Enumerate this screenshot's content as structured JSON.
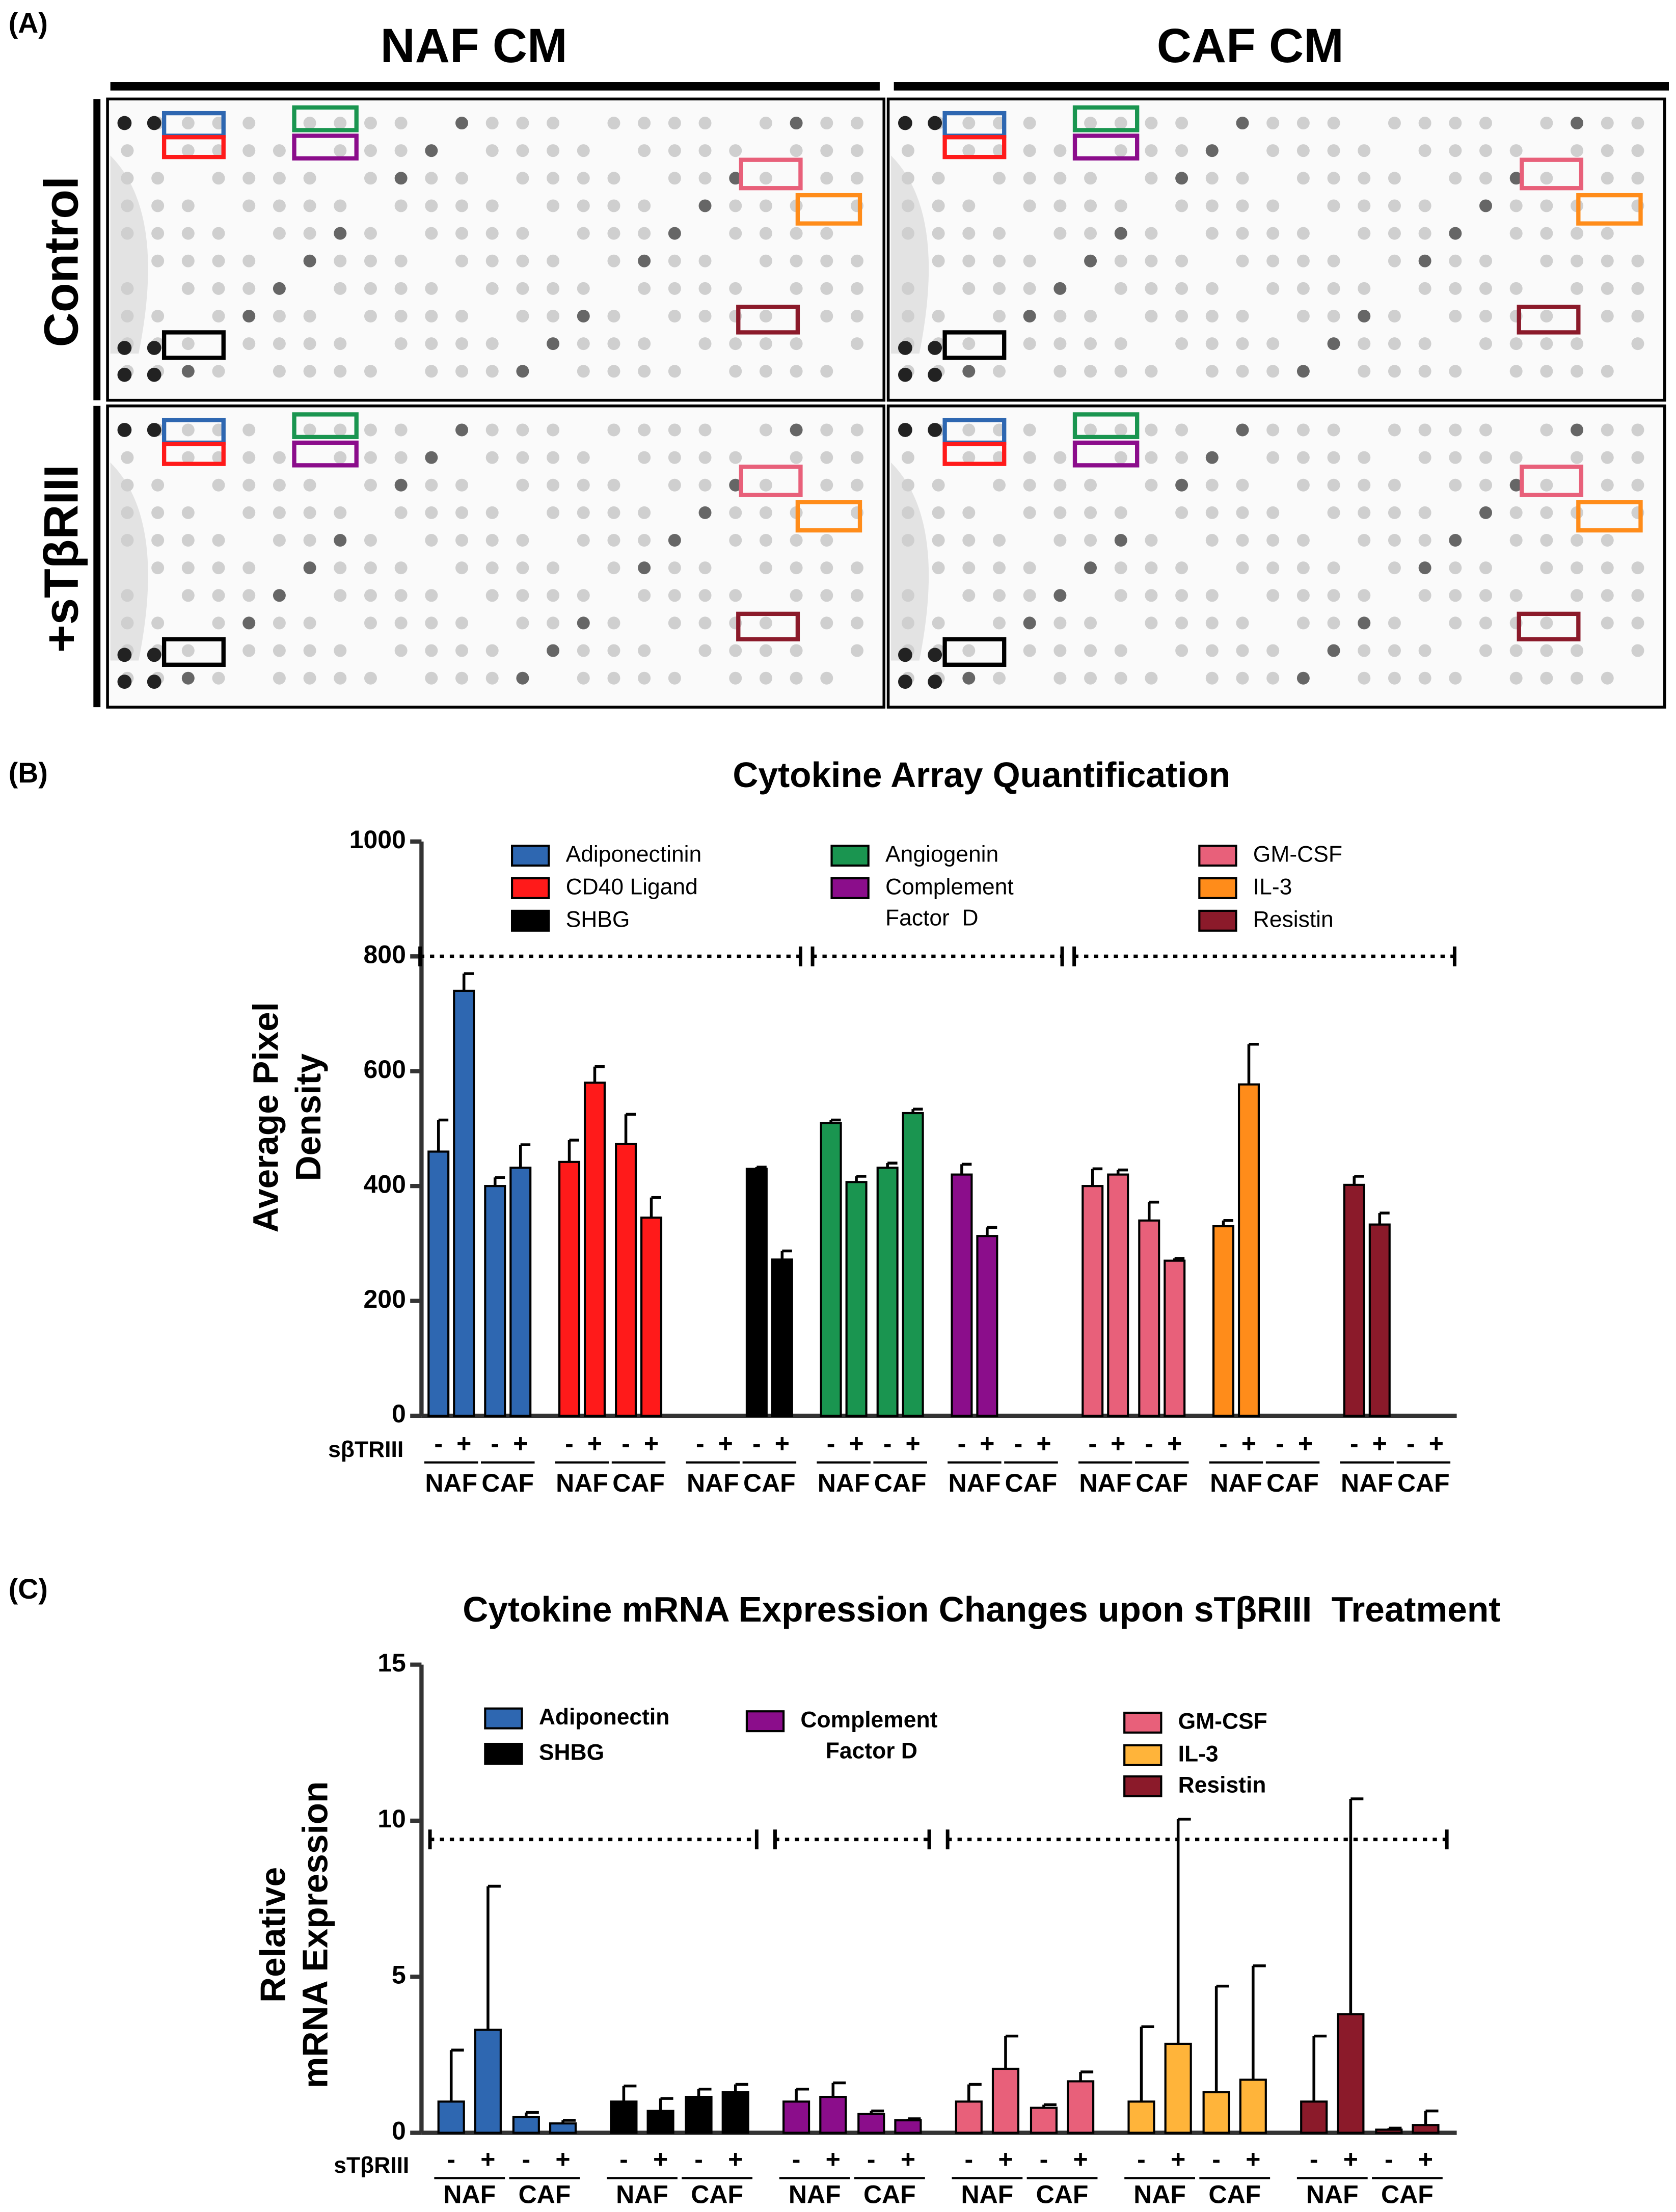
{
  "panel_labels": [
    "(A)",
    "(B)",
    "(C)"
  ],
  "panel_a": {
    "columns": [
      "NAF CM",
      "CAF CM"
    ],
    "rows": [
      "Control",
      "+sTβRIII"
    ]
  },
  "chart_data": [
    {
      "type": "bar",
      "title": "Cytokine Array Quantification",
      "y_label": "Average Pixel\nDensity",
      "ylim": [
        0,
        1000
      ],
      "yticks": [
        0,
        200,
        400,
        600,
        800,
        1000
      ],
      "treatment_label": "sβTRIII",
      "bar_labels": [
        "-",
        "+",
        "-",
        "+"
      ],
      "group_labels": [
        "NAF",
        "CAF"
      ],
      "bracket_level": 800,
      "brackets": [
        [
          0,
          2
        ],
        [
          3,
          4
        ],
        [
          5,
          7
        ]
      ],
      "series": [
        {
          "name": "Adiponectinin",
          "color": "#2e67b1",
          "values": [
            460,
            740,
            400,
            432
          ],
          "errors": [
            55,
            30,
            15,
            40
          ]
        },
        {
          "name": "CD40 Ligand",
          "color": "#ff1a1a",
          "values": [
            442,
            580,
            473,
            345
          ],
          "errors": [
            38,
            28,
            52,
            35
          ]
        },
        {
          "name": "SHBG",
          "color": "#000000",
          "values": [
            null,
            null,
            430,
            272
          ],
          "errors": [
            null,
            null,
            3,
            15
          ]
        },
        {
          "name": "Angiogenin",
          "color": "#1a9550",
          "values": [
            510,
            407,
            432,
            527
          ],
          "errors": [
            5,
            10,
            8,
            7
          ]
        },
        {
          "name": "Complement\nFactor  D",
          "color": "#8b0d8b",
          "values": [
            420,
            313,
            null,
            null
          ],
          "errors": [
            18,
            15,
            null,
            null
          ]
        },
        {
          "name": "GM-CSF",
          "color": "#e8607a",
          "values": [
            400,
            420,
            340,
            270
          ],
          "errors": [
            30,
            8,
            32,
            4
          ]
        },
        {
          "name": "IL-3",
          "color": "#ff8c1a",
          "values": [
            330,
            577,
            null,
            null
          ],
          "errors": [
            10,
            70,
            null,
            null
          ]
        },
        {
          "name": "Resistin",
          "color": "#8b1a2a",
          "values": [
            402,
            333,
            null,
            null
          ],
          "errors": [
            15,
            20,
            null,
            null
          ]
        }
      ]
    },
    {
      "type": "bar",
      "title": "Cytokine mRNA Expression Changes upon sTβRIII  Treatment",
      "y_label": "Relative\nmRNA Expression",
      "ylim": [
        0,
        15
      ],
      "yticks": [
        0,
        5,
        10,
        15
      ],
      "treatment_label": "sTβRIII",
      "bar_labels": [
        "-",
        "+",
        "-",
        "+"
      ],
      "group_labels": [
        "NAF",
        "CAF"
      ],
      "bracket_level": 9.4,
      "brackets": [
        [
          0,
          1
        ],
        [
          2,
          2
        ],
        [
          3,
          5
        ]
      ],
      "series": [
        {
          "name": "Adiponectin",
          "color": "#2e67b1",
          "values": [
            1,
            3.3,
            0.5,
            0.3
          ],
          "errors": [
            1.65,
            4.6,
            0.15,
            0.1
          ]
        },
        {
          "name": "SHBG",
          "color": "#000000",
          "values": [
            1,
            0.7,
            1.15,
            1.3
          ],
          "errors": [
            0.5,
            0.4,
            0.25,
            0.25
          ]
        },
        {
          "name": "Complement\n    Factor D",
          "color": "#8b0d8b",
          "values": [
            1,
            1.15,
            0.6,
            0.4
          ],
          "errors": [
            0.4,
            0.45,
            0.1,
            0.05
          ]
        },
        {
          "name": "GM-CSF",
          "color": "#e8607a",
          "values": [
            1,
            2.05,
            0.8,
            1.65
          ],
          "errors": [
            0.55,
            1.05,
            0.1,
            0.3
          ]
        },
        {
          "name": "IL-3",
          "color": "#ffb43a",
          "values": [
            1,
            2.85,
            1.3,
            1.7
          ],
          "errors": [
            2.4,
            7.2,
            3.4,
            3.65
          ]
        },
        {
          "name": "Resistin",
          "color": "#8b1a2a",
          "values": [
            1,
            3.8,
            0.1,
            0.25
          ],
          "errors": [
            2.1,
            6.9,
            0.05,
            0.45
          ]
        }
      ]
    }
  ]
}
